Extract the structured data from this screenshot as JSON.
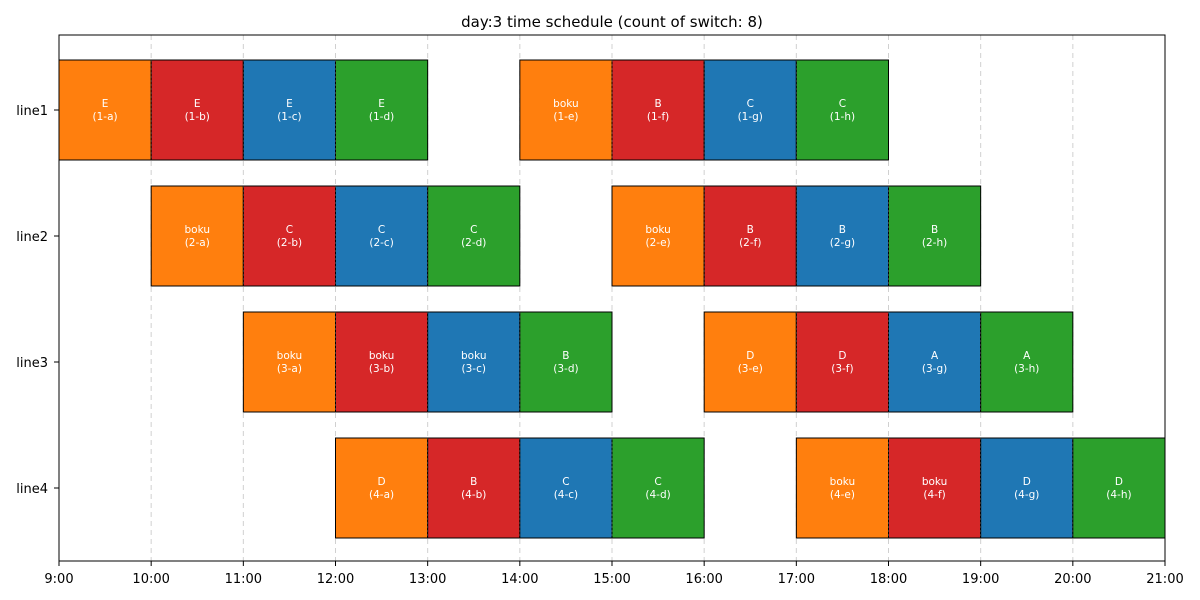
{
  "chart_data": {
    "type": "gantt",
    "title": "day:3 time schedule (count of switch: 8)",
    "xlim": [
      "9:00",
      "21:00"
    ],
    "x_ticks": [
      "9:00",
      "10:00",
      "11:00",
      "12:00",
      "13:00",
      "14:00",
      "15:00",
      "16:00",
      "17:00",
      "18:00",
      "19:00",
      "20:00",
      "21:00"
    ],
    "lines": [
      "line1",
      "line2",
      "line3",
      "line4"
    ],
    "grid": "vertical dashed",
    "colors": {
      "orange": "#ff7f0e",
      "red": "#d62728",
      "blue": "#1f77b4",
      "green": "#2ca02c"
    },
    "tasks": [
      {
        "line": "line1",
        "start": "9:00",
        "end": "10:00",
        "product": "E",
        "code": "(1-a)",
        "color": "orange"
      },
      {
        "line": "line1",
        "start": "10:00",
        "end": "11:00",
        "product": "E",
        "code": "(1-b)",
        "color": "red"
      },
      {
        "line": "line1",
        "start": "11:00",
        "end": "12:00",
        "product": "E",
        "code": "(1-c)",
        "color": "blue"
      },
      {
        "line": "line1",
        "start": "12:00",
        "end": "13:00",
        "product": "E",
        "code": "(1-d)",
        "color": "green"
      },
      {
        "line": "line1",
        "start": "14:00",
        "end": "15:00",
        "product": "boku",
        "code": "(1-e)",
        "color": "orange"
      },
      {
        "line": "line1",
        "start": "15:00",
        "end": "16:00",
        "product": "B",
        "code": "(1-f)",
        "color": "red"
      },
      {
        "line": "line1",
        "start": "16:00",
        "end": "17:00",
        "product": "C",
        "code": "(1-g)",
        "color": "blue"
      },
      {
        "line": "line1",
        "start": "17:00",
        "end": "18:00",
        "product": "C",
        "code": "(1-h)",
        "color": "green"
      },
      {
        "line": "line2",
        "start": "10:00",
        "end": "11:00",
        "product": "boku",
        "code": "(2-a)",
        "color": "orange"
      },
      {
        "line": "line2",
        "start": "11:00",
        "end": "12:00",
        "product": "C",
        "code": "(2-b)",
        "color": "red"
      },
      {
        "line": "line2",
        "start": "12:00",
        "end": "13:00",
        "product": "C",
        "code": "(2-c)",
        "color": "blue"
      },
      {
        "line": "line2",
        "start": "13:00",
        "end": "14:00",
        "product": "C",
        "code": "(2-d)",
        "color": "green"
      },
      {
        "line": "line2",
        "start": "15:00",
        "end": "16:00",
        "product": "boku",
        "code": "(2-e)",
        "color": "orange"
      },
      {
        "line": "line2",
        "start": "16:00",
        "end": "17:00",
        "product": "B",
        "code": "(2-f)",
        "color": "red"
      },
      {
        "line": "line2",
        "start": "17:00",
        "end": "18:00",
        "product": "B",
        "code": "(2-g)",
        "color": "blue"
      },
      {
        "line": "line2",
        "start": "18:00",
        "end": "19:00",
        "product": "B",
        "code": "(2-h)",
        "color": "green"
      },
      {
        "line": "line3",
        "start": "11:00",
        "end": "12:00",
        "product": "boku",
        "code": "(3-a)",
        "color": "orange"
      },
      {
        "line": "line3",
        "start": "12:00",
        "end": "13:00",
        "product": "boku",
        "code": "(3-b)",
        "color": "red"
      },
      {
        "line": "line3",
        "start": "13:00",
        "end": "14:00",
        "product": "boku",
        "code": "(3-c)",
        "color": "blue"
      },
      {
        "line": "line3",
        "start": "14:00",
        "end": "15:00",
        "product": "B",
        "code": "(3-d)",
        "color": "green"
      },
      {
        "line": "line3",
        "start": "16:00",
        "end": "17:00",
        "product": "D",
        "code": "(3-e)",
        "color": "orange"
      },
      {
        "line": "line3",
        "start": "17:00",
        "end": "18:00",
        "product": "D",
        "code": "(3-f)",
        "color": "red"
      },
      {
        "line": "line3",
        "start": "18:00",
        "end": "19:00",
        "product": "A",
        "code": "(3-g)",
        "color": "blue"
      },
      {
        "line": "line3",
        "start": "19:00",
        "end": "20:00",
        "product": "A",
        "code": "(3-h)",
        "color": "green"
      },
      {
        "line": "line4",
        "start": "12:00",
        "end": "13:00",
        "product": "D",
        "code": "(4-a)",
        "color": "orange"
      },
      {
        "line": "line4",
        "start": "13:00",
        "end": "14:00",
        "product": "B",
        "code": "(4-b)",
        "color": "red"
      },
      {
        "line": "line4",
        "start": "14:00",
        "end": "15:00",
        "product": "C",
        "code": "(4-c)",
        "color": "blue"
      },
      {
        "line": "line4",
        "start": "15:00",
        "end": "16:00",
        "product": "C",
        "code": "(4-d)",
        "color": "green"
      },
      {
        "line": "line4",
        "start": "17:00",
        "end": "18:00",
        "product": "boku",
        "code": "(4-e)",
        "color": "orange"
      },
      {
        "line": "line4",
        "start": "18:00",
        "end": "19:00",
        "product": "boku",
        "code": "(4-f)",
        "color": "red"
      },
      {
        "line": "line4",
        "start": "19:00",
        "end": "20:00",
        "product": "D",
        "code": "(4-g)",
        "color": "blue"
      },
      {
        "line": "line4",
        "start": "20:00",
        "end": "21:00",
        "product": "D",
        "code": "(4-h)",
        "color": "green"
      }
    ]
  }
}
